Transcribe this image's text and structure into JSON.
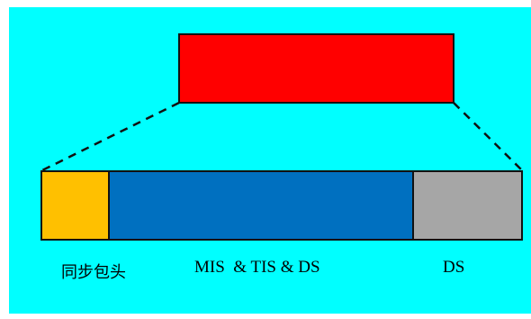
{
  "colors": {
    "background": "#00ffff",
    "top_block": "#ff0000",
    "sync_segment": "#ffc000",
    "middle_segment": "#0070c0",
    "ds_segment": "#a6a6a6",
    "outline": "#111111"
  },
  "labels": {
    "sync_header": "同步包头",
    "middle_segment": "MIS  & TIS & DS",
    "ds_segment": "DS"
  }
}
